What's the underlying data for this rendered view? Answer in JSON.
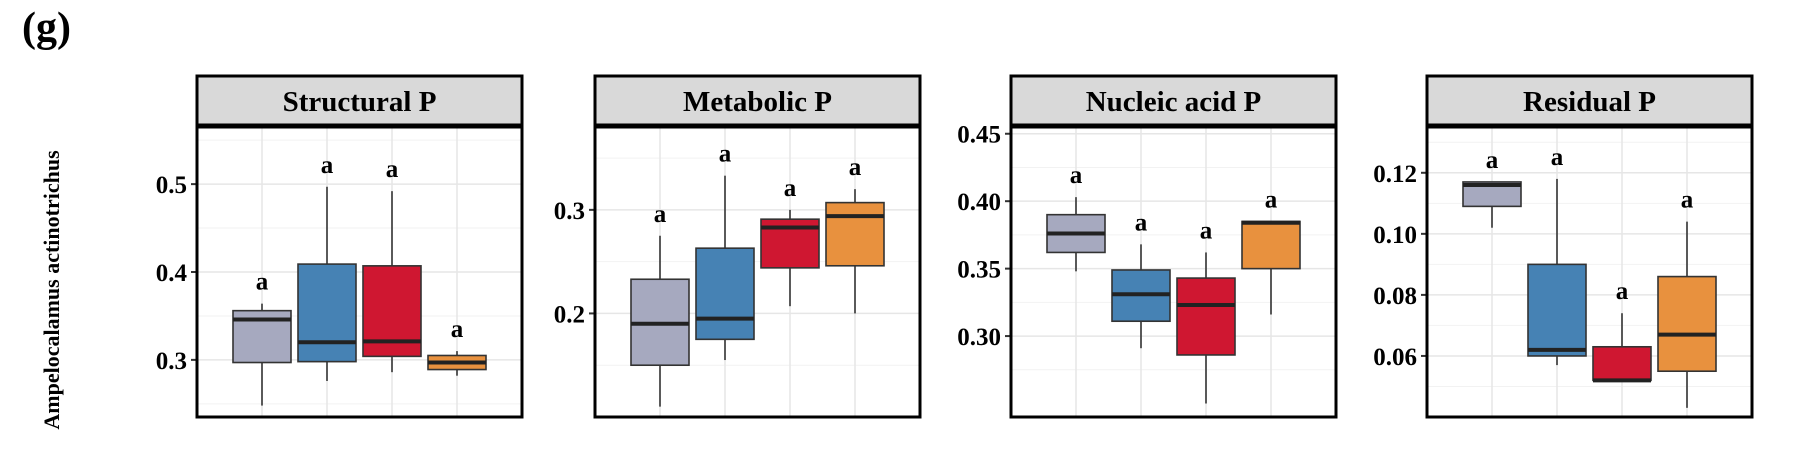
{
  "figure": {
    "panel_label": "(g)",
    "ylabel": "Ampelocalamus actinotrichus"
  },
  "colors": {
    "groups": [
      "#a6a9bf",
      "#4682b4",
      "#cf1731",
      "#e8913e"
    ],
    "strip": "#d9d9d9",
    "grid_major": "#e6e6e6",
    "grid_minor": "#f2f2f2",
    "frame": "#000000"
  },
  "chart_data": [
    {
      "type": "box",
      "title": "Structural P",
      "ylim": [
        0.235,
        0.565
      ],
      "yticks": [
        0.3,
        0.4,
        0.5
      ],
      "ytick_labels": [
        "0.3",
        "0.4",
        "0.5"
      ],
      "grid": true,
      "boxes": [
        {
          "min": 0.248,
          "q1": 0.297,
          "median": 0.346,
          "q3": 0.356,
          "max": 0.364,
          "label": "a"
        },
        {
          "min": 0.276,
          "q1": 0.298,
          "median": 0.32,
          "q3": 0.409,
          "max": 0.497,
          "label": "a"
        },
        {
          "min": 0.286,
          "q1": 0.304,
          "median": 0.321,
          "q3": 0.407,
          "max": 0.492,
          "label": "a"
        },
        {
          "min": 0.282,
          "q1": 0.289,
          "median": 0.297,
          "q3": 0.305,
          "max": 0.31,
          "label": "a"
        }
      ]
    },
    {
      "type": "box",
      "title": "Metabolic P",
      "ylim": [
        0.1,
        0.38
      ],
      "yticks": [
        0.2,
        0.3
      ],
      "ytick_labels": [
        "0.2",
        "0.3"
      ],
      "grid": true,
      "boxes": [
        {
          "min": 0.11,
          "q1": 0.15,
          "median": 0.19,
          "q3": 0.233,
          "max": 0.275,
          "label": "a"
        },
        {
          "min": 0.155,
          "q1": 0.175,
          "median": 0.195,
          "q3": 0.263,
          "max": 0.333,
          "label": "a"
        },
        {
          "min": 0.207,
          "q1": 0.244,
          "median": 0.283,
          "q3": 0.291,
          "max": 0.3,
          "label": "a"
        },
        {
          "min": 0.2,
          "q1": 0.246,
          "median": 0.294,
          "q3": 0.307,
          "max": 0.32,
          "label": "a"
        }
      ]
    },
    {
      "type": "box",
      "title": "Nucleic acid P",
      "ylim": [
        0.24,
        0.455
      ],
      "yticks": [
        0.3,
        0.35,
        0.4,
        0.45
      ],
      "ytick_labels": [
        "0.30",
        "0.35",
        "0.40",
        "0.45"
      ],
      "grid": true,
      "boxes": [
        {
          "min": 0.348,
          "q1": 0.362,
          "median": 0.376,
          "q3": 0.39,
          "max": 0.403,
          "label": "a"
        },
        {
          "min": 0.291,
          "q1": 0.311,
          "median": 0.331,
          "q3": 0.349,
          "max": 0.368,
          "label": "a"
        },
        {
          "min": 0.25,
          "q1": 0.286,
          "median": 0.323,
          "q3": 0.343,
          "max": 0.362,
          "label": "a"
        },
        {
          "min": 0.316,
          "q1": 0.35,
          "median": 0.384,
          "q3": 0.385,
          "max": 0.385,
          "label": "a"
        }
      ]
    },
    {
      "type": "box",
      "title": "Residual P",
      "ylim": [
        0.04,
        0.135
      ],
      "yticks": [
        0.06,
        0.08,
        0.1,
        0.12
      ],
      "ytick_labels": [
        "0.06",
        "0.08",
        "0.10",
        "0.12"
      ],
      "grid": true,
      "boxes": [
        {
          "min": 0.102,
          "q1": 0.109,
          "median": 0.116,
          "q3": 0.117,
          "max": 0.117,
          "label": "a"
        },
        {
          "min": 0.057,
          "q1": 0.06,
          "median": 0.062,
          "q3": 0.09,
          "max": 0.118,
          "label": "a"
        },
        {
          "min": 0.052,
          "q1": 0.052,
          "median": 0.052,
          "q3": 0.063,
          "max": 0.074,
          "label": "a"
        },
        {
          "min": 0.043,
          "q1": 0.055,
          "median": 0.067,
          "q3": 0.086,
          "max": 0.104,
          "label": "a"
        }
      ]
    }
  ]
}
